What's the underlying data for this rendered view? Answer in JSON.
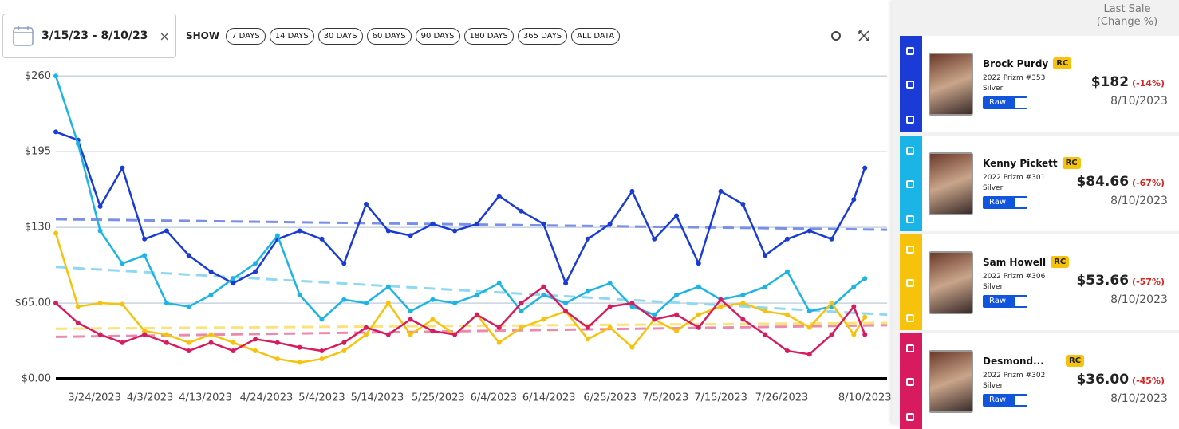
{
  "toolbar": {
    "date_range": "3/15/23 - 8/10/23",
    "clear": "×",
    "show_label": "SHOW",
    "ranges": [
      "7 DAYS",
      "14 DAYS",
      "30 DAYS",
      "60 DAYS",
      "90 DAYS",
      "180 DAYS",
      "365 DAYS",
      "ALL DATA"
    ]
  },
  "chart_data": {
    "type": "line",
    "x": [
      "2023-03-17",
      "2023-03-21",
      "2023-03-25",
      "2023-03-29",
      "2023-04-02",
      "2023-04-06",
      "2023-04-10",
      "2023-04-14",
      "2023-04-18",
      "2023-04-22",
      "2023-04-26",
      "2023-04-30",
      "2023-05-04",
      "2023-05-08",
      "2023-05-12",
      "2023-05-16",
      "2023-05-20",
      "2023-05-24",
      "2023-05-28",
      "2023-06-01",
      "2023-06-05",
      "2023-06-09",
      "2023-06-13",
      "2023-06-17",
      "2023-06-21",
      "2023-06-25",
      "2023-06-29",
      "2023-07-03",
      "2023-07-07",
      "2023-07-11",
      "2023-07-15",
      "2023-07-19",
      "2023-07-23",
      "2023-07-27",
      "2023-07-31",
      "2023-08-04",
      "2023-08-08",
      "2023-08-10"
    ],
    "xlim": [
      "2023-03-17",
      "2023-08-14"
    ],
    "xticks": [
      {
        "value": "2023-03-24",
        "label": "3/24/2023"
      },
      {
        "value": "2023-04-03",
        "label": "4/3/2023"
      },
      {
        "value": "2023-04-13",
        "label": "4/13/2023"
      },
      {
        "value": "2023-04-24",
        "label": "4/24/2023"
      },
      {
        "value": "2023-05-04",
        "label": "5/4/2023"
      },
      {
        "value": "2023-05-14",
        "label": "5/14/2023"
      },
      {
        "value": "2023-05-25",
        "label": "5/25/2023"
      },
      {
        "value": "2023-06-04",
        "label": "6/4/2023"
      },
      {
        "value": "2023-06-14",
        "label": "6/14/2023"
      },
      {
        "value": "2023-06-25",
        "label": "6/25/2023"
      },
      {
        "value": "2023-07-05",
        "label": "7/5/2023"
      },
      {
        "value": "2023-07-15",
        "label": "7/15/2023"
      },
      {
        "value": "2023-07-26",
        "label": "7/26/2023"
      },
      {
        "value": "2023-08-10",
        "label": "8/10/2023"
      }
    ],
    "ylim": [
      0,
      265
    ],
    "yticks": [
      {
        "value": 0,
        "label": "$0.00"
      },
      {
        "value": 65,
        "label": "$65.00"
      },
      {
        "value": 130,
        "label": "$130"
      },
      {
        "value": 195,
        "label": "$195"
      },
      {
        "value": 260,
        "label": "$260"
      }
    ],
    "grid": true,
    "series": [
      {
        "color": "#1a3bd6",
        "trend_color": "#7a8fe6",
        "trend": [
          137,
          128
        ],
        "values": [
          212,
          205,
          148,
          181,
          120,
          127,
          106,
          92,
          82,
          92,
          120,
          127,
          120,
          99,
          150,
          127,
          123,
          133,
          127,
          133,
          157,
          144,
          133,
          82,
          120,
          133,
          161,
          120,
          140,
          99,
          161,
          150,
          106,
          120,
          127,
          120,
          154,
          181
        ]
      },
      {
        "color": "#1ab4e6",
        "trend_color": "#8fd8f2",
        "trend": [
          96,
          55
        ],
        "values": [
          260,
          202,
          127,
          99,
          106,
          65,
          62,
          72,
          86,
          99,
          123,
          72,
          51,
          68,
          65,
          79,
          58,
          68,
          65,
          72,
          82,
          58,
          72,
          65,
          75,
          82,
          62,
          55,
          72,
          79,
          68,
          72,
          79,
          92,
          58,
          62,
          79,
          86
        ]
      },
      {
        "color": "#f7c20c",
        "trend_color": "#fbe27a",
        "trend": [
          43,
          48
        ],
        "values": [
          125,
          62,
          65,
          64,
          41,
          38,
          31,
          38,
          31,
          24,
          17,
          14,
          17,
          24,
          38,
          65,
          38,
          51,
          38,
          55,
          31,
          44,
          51,
          58,
          34,
          44,
          27,
          51,
          41,
          55,
          62,
          65,
          58,
          55,
          44,
          65,
          38,
          53
        ]
      },
      {
        "color": "#d81b5f",
        "trend_color": "#ec8aae",
        "trend": [
          36,
          46
        ],
        "values": [
          65,
          48,
          38,
          31,
          38,
          31,
          24,
          31,
          24,
          34,
          31,
          27,
          24,
          31,
          44,
          38,
          51,
          41,
          38,
          55,
          44,
          65,
          79,
          58,
          44,
          62,
          65,
          51,
          55,
          44,
          68,
          51,
          38,
          24,
          21,
          38,
          62,
          38
        ]
      }
    ]
  },
  "sidebar": {
    "header": {
      "title": "Last Sale",
      "subtitle": "(Change %)"
    },
    "cards": [
      {
        "color": "#1a3bd6",
        "name": "Brock Purdy",
        "badge": "RC",
        "set": "2022 Prizm #353",
        "variant": "Silver",
        "grade": "Raw",
        "price": "$182",
        "change": "(-14%)",
        "date": "8/10/2023"
      },
      {
        "color": "#1ab4e6",
        "name": "Kenny Pickett",
        "badge": "RC",
        "set": "2022 Prizm #301",
        "variant": "Silver",
        "grade": "Raw",
        "price": "$84.66",
        "change": "(-67%)",
        "date": "8/10/2023"
      },
      {
        "color": "#f7c20c",
        "name": "Sam Howell",
        "badge": "RC",
        "set": "2022 Prizm #306",
        "variant": "Silver",
        "grade": "Raw",
        "price": "$53.66",
        "change": "(-57%)",
        "date": "8/10/2023"
      },
      {
        "color": "#d81b5f",
        "name": "Desmond...",
        "badge": "RC",
        "set": "2022 Prizm #302",
        "variant": "Silver",
        "grade": "Raw",
        "price": "$36.00",
        "change": "(-45%)",
        "date": "8/10/2023"
      }
    ]
  }
}
